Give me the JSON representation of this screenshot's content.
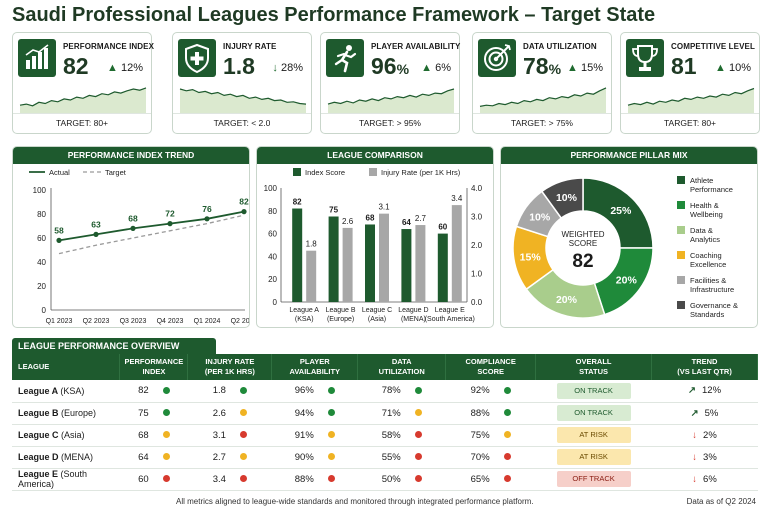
{
  "title": "Saudi Professional Leagues Performance Framework – Target State",
  "colors": {
    "primary": "#1e5a2e",
    "accent": "#27a243",
    "light": "#a9cd8c",
    "gold": "#f0b323",
    "gray": "#a7a7a7",
    "dark": "#4a4a4a",
    "red": "#d73a2e",
    "yellow": "#f0b323",
    "green": "#1f8a3a"
  },
  "kpis": [
    {
      "label": "PERFORMANCE INDEX",
      "value": "82",
      "unit": "",
      "change": "12%",
      "dir": "up",
      "target": "TARGET: 80+",
      "icon": "bar-chart-icon",
      "spark": [
        30,
        32,
        29,
        35,
        33,
        38,
        36,
        41,
        39,
        44,
        42,
        47,
        45,
        50,
        48,
        53,
        51,
        55,
        58,
        56,
        60
      ]
    },
    {
      "label": "INJURY RATE",
      "value": "1.8",
      "unit": "",
      "change": "28%",
      "dir": "down",
      "target": "TARGET: < 2.0",
      "icon": "medical-shield-icon",
      "spark": [
        58,
        55,
        57,
        52,
        54,
        50,
        52,
        47,
        49,
        45,
        47,
        42,
        44,
        40,
        42,
        38,
        39,
        35,
        36,
        33,
        32
      ]
    },
    {
      "label": "PLAYER AVAILABILITY",
      "value": "96",
      "unit": "%",
      "change": "6%",
      "dir": "up",
      "target": "TARGET: > 95%",
      "icon": "running-player-icon",
      "spark": [
        32,
        35,
        33,
        37,
        34,
        39,
        37,
        41,
        38,
        43,
        41,
        45,
        43,
        47,
        44,
        49,
        47,
        51,
        50,
        55,
        58
      ]
    },
    {
      "label": "DATA UTILIZATION",
      "value": "78",
      "unit": "%",
      "change": "15%",
      "dir": "up",
      "target": "TARGET: > 75%",
      "icon": "target-icon",
      "spark": [
        28,
        30,
        29,
        33,
        31,
        35,
        33,
        38,
        36,
        40,
        38,
        43,
        41,
        45,
        43,
        48,
        46,
        51,
        49,
        55,
        60
      ]
    },
    {
      "label": "COMPETITIVE LEVEL",
      "value": "81",
      "unit": "",
      "change": "10%",
      "dir": "up",
      "target": "TARGET: 80+",
      "icon": "trophy-icon",
      "spark": [
        30,
        33,
        31,
        35,
        32,
        37,
        35,
        39,
        37,
        42,
        40,
        44,
        42,
        46,
        44,
        49,
        47,
        52,
        50,
        55,
        59
      ]
    }
  ],
  "panels": {
    "trend": "PERFORMANCE INDEX TREND",
    "comparison": "LEAGUE COMPARISON",
    "pillars": "PERFORMANCE PILLAR MIX"
  },
  "chart_data": [
    {
      "type": "line",
      "title": "PERFORMANCE INDEX TREND",
      "categories": [
        "Q1 2023",
        "Q2 2023",
        "Q3 2023",
        "Q4 2023",
        "Q1 2024",
        "Q2 2024"
      ],
      "series": [
        {
          "name": "Actual",
          "values": [
            58,
            63,
            68,
            72,
            76,
            82
          ],
          "labels": true
        },
        {
          "name": "Target",
          "values": [
            47,
            54,
            60,
            66,
            72,
            79
          ],
          "dashed": true
        }
      ],
      "ylim": [
        0,
        100
      ],
      "yticks": [
        0,
        20,
        40,
        60,
        80,
        100
      ],
      "legend": "top-left",
      "grid": false
    },
    {
      "type": "bar",
      "title": "LEAGUE COMPARISON",
      "categories": [
        [
          "League A",
          "(KSA)"
        ],
        [
          "League B",
          "(Europe)"
        ],
        [
          "League C",
          "(Asia)"
        ],
        [
          "League D",
          "(MENA)"
        ],
        [
          "League E",
          "(South America)"
        ]
      ],
      "series": [
        {
          "name": "Index Score",
          "values": [
            82,
            75,
            68,
            64,
            60
          ],
          "axis": "left"
        },
        {
          "name": "Injury Rate (per 1K Hrs)",
          "values": [
            1.8,
            2.6,
            3.1,
            2.7,
            3.4
          ],
          "axis": "right"
        }
      ],
      "ylim": [
        0,
        100
      ],
      "yticks": [
        0,
        20,
        40,
        60,
        80,
        100
      ],
      "y2lim": [
        0,
        4
      ],
      "y2ticks": [
        "0.0",
        "1.0",
        "2.0",
        "3.0",
        "4.0"
      ],
      "legend": "top",
      "grid": false
    },
    {
      "type": "pie",
      "title": "PERFORMANCE PILLAR MIX",
      "center_label": [
        "WEIGHTED",
        "SCORE"
      ],
      "center_value": "82",
      "slices": [
        {
          "label": "Athlete Performance",
          "legend": [
            "Athlete",
            "Performance"
          ],
          "value": 25
        },
        {
          "label": "Health & Wellbeing",
          "legend": [
            "Health &",
            "Wellbeing"
          ],
          "value": 20
        },
        {
          "label": "Data & Analytics",
          "legend": [
            "Data &",
            "Analytics"
          ],
          "value": 20
        },
        {
          "label": "Coaching Excellence",
          "legend": [
            "Coaching",
            "Excellence"
          ],
          "value": 15
        },
        {
          "label": "Facilities & Infrastructure",
          "legend": [
            "Facilities &",
            "Infrastructure"
          ],
          "value": 10
        },
        {
          "label": "Governance & Standards",
          "legend": [
            "Governance &",
            "Standards"
          ],
          "value": 10
        }
      ],
      "legend": "right"
    }
  ],
  "overview": {
    "title": "LEAGUE PERFORMANCE OVERVIEW",
    "headers": [
      [
        "LEAGUE"
      ],
      [
        "PERFORMANCE",
        "INDEX"
      ],
      [
        "INJURY RATE",
        "(PER 1K HRS)"
      ],
      [
        "PLAYER",
        "AVAILABILITY"
      ],
      [
        "DATA",
        "UTILIZATION"
      ],
      [
        "COMPLIANCE",
        "SCORE"
      ],
      [
        "OVERALL",
        "STATUS"
      ],
      [
        "TREND",
        "(VS LAST QTR)"
      ]
    ],
    "rows": [
      {
        "league": "League A",
        "region": "(KSA)",
        "index": "82",
        "index_dot": "green",
        "injury": "1.8",
        "injury_dot": "green",
        "avail": "96%",
        "avail_dot": "green",
        "data": "78%",
        "data_dot": "green",
        "comp": "92%",
        "comp_dot": "green",
        "status": "ON TRACK",
        "status_kind": "ok",
        "trend": "12%",
        "trend_dir": "up"
      },
      {
        "league": "League B",
        "region": "(Europe)",
        "index": "75",
        "index_dot": "green",
        "injury": "2.6",
        "injury_dot": "yellow",
        "avail": "94%",
        "avail_dot": "green",
        "data": "71%",
        "data_dot": "yellow",
        "comp": "88%",
        "comp_dot": "green",
        "status": "ON TRACK",
        "status_kind": "ok",
        "trend": "5%",
        "trend_dir": "up"
      },
      {
        "league": "League C",
        "region": "(Asia)",
        "index": "68",
        "index_dot": "yellow",
        "injury": "3.1",
        "injury_dot": "red",
        "avail": "91%",
        "avail_dot": "yellow",
        "data": "58%",
        "data_dot": "red",
        "comp": "75%",
        "comp_dot": "yellow",
        "status": "AT RISK",
        "status_kind": "risk",
        "trend": "2%",
        "trend_dir": "down"
      },
      {
        "league": "League D",
        "region": "(MENA)",
        "index": "64",
        "index_dot": "yellow",
        "injury": "2.7",
        "injury_dot": "yellow",
        "avail": "90%",
        "avail_dot": "yellow",
        "data": "55%",
        "data_dot": "red",
        "comp": "70%",
        "comp_dot": "red",
        "status": "AT RISK",
        "status_kind": "risk",
        "trend": "3%",
        "trend_dir": "down"
      },
      {
        "league": "League E",
        "region": "(South America)",
        "index": "60",
        "index_dot": "red",
        "injury": "3.4",
        "injury_dot": "red",
        "avail": "88%",
        "avail_dot": "red",
        "data": "50%",
        "data_dot": "red",
        "comp": "65%",
        "comp_dot": "red",
        "status": "OFF TRACK",
        "status_kind": "off",
        "trend": "6%",
        "trend_dir": "down"
      }
    ]
  },
  "footer": {
    "note": "All metrics aligned to league-wide standards and monitored through integrated performance platform.",
    "asof": "Data as of Q2 2024"
  }
}
